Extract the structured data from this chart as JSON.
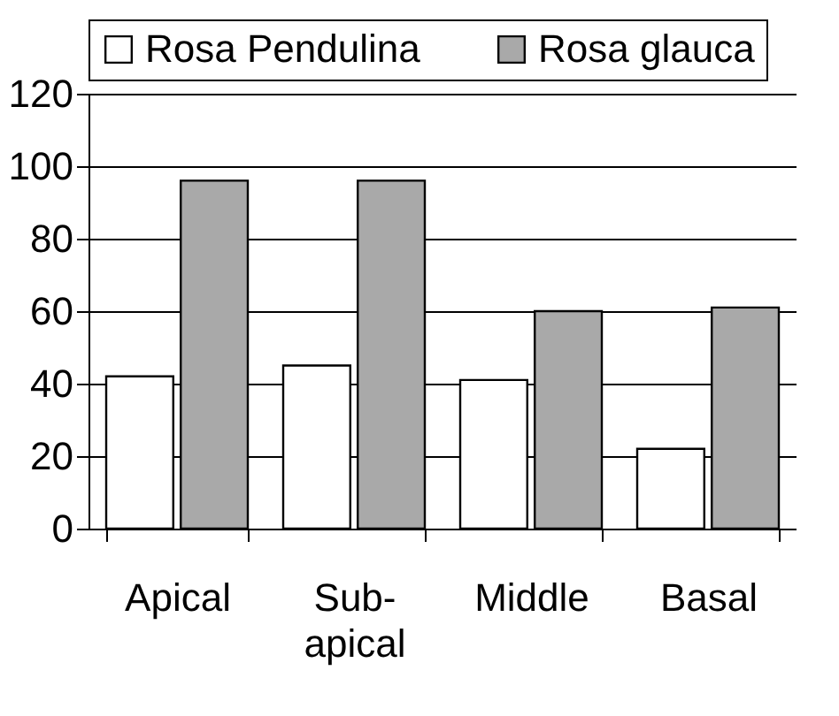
{
  "chart_data": {
    "type": "bar",
    "categories": [
      "Apical",
      "Sub-apical",
      "Middle",
      "Basal"
    ],
    "series": [
      {
        "name": "Rosa Pendulina",
        "color": "#ffffff",
        "values": [
          42,
          45,
          41,
          22
        ]
      },
      {
        "name": "Rosa glauca",
        "color": "#a9a9a9",
        "values": [
          96,
          96,
          60,
          61
        ]
      }
    ],
    "ylim": [
      0,
      120
    ],
    "yticks": [
      0,
      20,
      40,
      60,
      80,
      100,
      120
    ],
    "grid": "y",
    "legend": "top"
  }
}
